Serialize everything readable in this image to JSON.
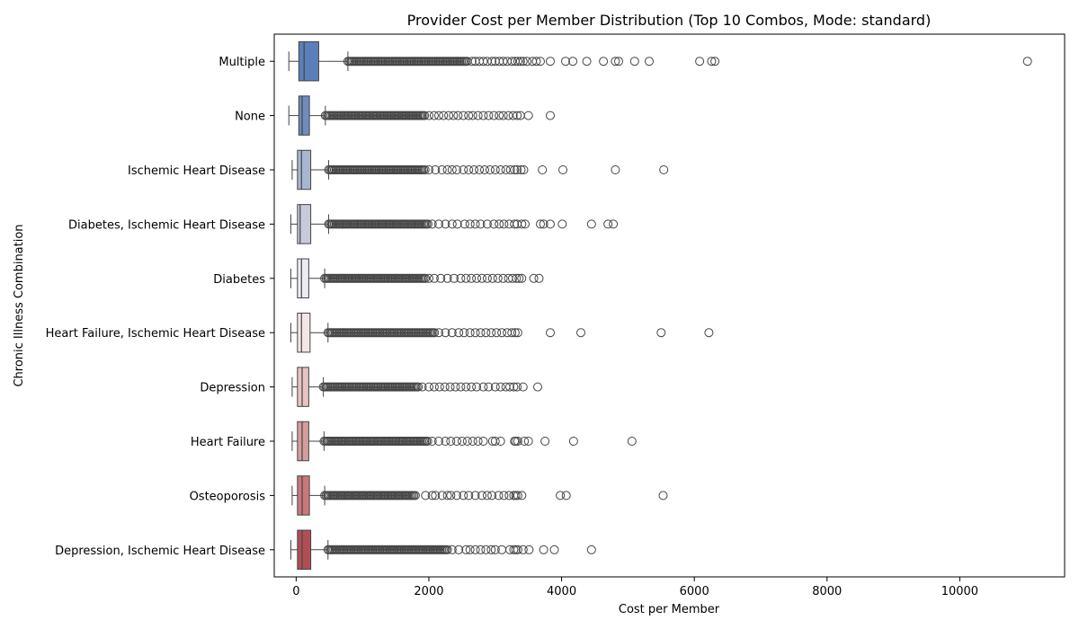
{
  "chart_data": {
    "type": "boxplot",
    "orientation": "horizontal",
    "title": "Provider Cost per Member Distribution (Top 10 Combos, Mode: standard)",
    "xlabel": "Cost per Member",
    "ylabel": "Chronic Illness Combination",
    "xlim": [
      -330,
      11580
    ],
    "xticks": [
      0,
      2000,
      4000,
      6000,
      8000,
      10000
    ],
    "xtick_labels": [
      "0",
      "2000",
      "4000",
      "6000",
      "8000",
      "10000"
    ],
    "grid": false,
    "legend": "none",
    "series": [
      {
        "category": "Multiple",
        "color": "#5b7fb8",
        "whisker_low": -110,
        "q1": 40,
        "median": 120,
        "q3": 340,
        "whisker_high": 780,
        "outlier_band": [
          780,
          2600
        ],
        "outliers": [
          2650,
          2700,
          2760,
          2820,
          2880,
          2950,
          3000,
          3060,
          3120,
          3180,
          3250,
          3300,
          3340,
          3380,
          3420,
          3480,
          3560,
          3620,
          3680,
          3830,
          4060,
          4170,
          4380,
          4630,
          4810,
          4860,
          5100,
          5320,
          6080,
          6260,
          6310,
          11020
        ]
      },
      {
        "category": "None",
        "color": "#6f8cbd",
        "whisker_low": -110,
        "q1": 40,
        "median": 90,
        "q3": 200,
        "whisker_high": 440,
        "outlier_band": [
          440,
          1950
        ],
        "outliers": [
          2000,
          2080,
          2150,
          2220,
          2300,
          2370,
          2440,
          2520,
          2600,
          2660,
          2740,
          2820,
          2900,
          2980,
          3060,
          3120,
          3200,
          3270,
          3330,
          3380,
          3500,
          3830
        ]
      },
      {
        "category": "Ischemic Heart Disease",
        "color": "#a9b6d1",
        "whisker_low": -60,
        "q1": 20,
        "median": 80,
        "q3": 220,
        "whisker_high": 490,
        "outlier_band": [
          490,
          1950
        ],
        "outliers": [
          2000,
          2100,
          2200,
          2280,
          2350,
          2420,
          2520,
          2600,
          2680,
          2760,
          2840,
          2920,
          3000,
          3080,
          3160,
          3230,
          3290,
          3330,
          3390,
          3430,
          3710,
          4020,
          4810,
          5540
        ]
      },
      {
        "category": "Diabetes, Ischemic Heart Disease",
        "color": "#c6cad9",
        "whisker_low": -80,
        "q1": 20,
        "median": 60,
        "q3": 220,
        "whisker_high": 490,
        "outlier_band": [
          490,
          2000
        ],
        "outliers": [
          2050,
          2150,
          2250,
          2350,
          2430,
          2540,
          2620,
          2700,
          2780,
          2880,
          2980,
          3060,
          3130,
          3210,
          3290,
          3330,
          3400,
          3450,
          3680,
          3730,
          3830,
          4010,
          4450,
          4700,
          4780
        ]
      },
      {
        "category": "Diabetes",
        "color": "#ecedf3",
        "whisker_low": -80,
        "q1": 20,
        "median": 80,
        "q3": 190,
        "whisker_high": 430,
        "outlier_band": [
          430,
          1950
        ],
        "outliers": [
          2000,
          2080,
          2180,
          2280,
          2380,
          2480,
          2560,
          2640,
          2720,
          2800,
          2880,
          2960,
          3040,
          3120,
          3200,
          3260,
          3320,
          3360,
          3400,
          3580,
          3660
        ]
      },
      {
        "category": "Heart Failure, Ischemic Heart Disease",
        "color": "#f4e6e6",
        "whisker_low": -80,
        "q1": 20,
        "median": 80,
        "q3": 210,
        "whisker_high": 480,
        "outlier_band": [
          480,
          2100
        ],
        "outliers": [
          2150,
          2250,
          2350,
          2450,
          2530,
          2620,
          2700,
          2780,
          2860,
          2940,
          3020,
          3100,
          3180,
          3250,
          3300,
          3340,
          3830,
          4290,
          5500,
          6220
        ]
      },
      {
        "category": "Depression",
        "color": "#e7c3c4",
        "whisker_low": -60,
        "q1": 20,
        "median": 90,
        "q3": 190,
        "whisker_high": 410,
        "outlier_band": [
          410,
          1850
        ],
        "outliers": [
          1900,
          2000,
          2080,
          2160,
          2240,
          2320,
          2400,
          2480,
          2560,
          2640,
          2720,
          2820,
          2900,
          3000,
          3080,
          3160,
          3220,
          3280,
          3330,
          3420,
          3640
        ]
      },
      {
        "category": "Heart Failure",
        "color": "#d59c9e",
        "whisker_low": -60,
        "q1": 20,
        "median": 90,
        "q3": 190,
        "whisker_high": 420,
        "outlier_band": [
          420,
          2000
        ],
        "outliers": [
          2050,
          2150,
          2250,
          2330,
          2420,
          2500,
          2580,
          2660,
          2740,
          2820,
          2960,
          3000,
          3080,
          3290,
          3310,
          3340,
          3440,
          3500,
          3750,
          4180,
          5060
        ]
      },
      {
        "category": "Osteoporosis",
        "color": "#c9777b",
        "whisker_low": -60,
        "q1": 20,
        "median": 90,
        "q3": 200,
        "whisker_high": 430,
        "outlier_band": [
          430,
          1800
        ],
        "outliers": [
          1950,
          2050,
          2100,
          2200,
          2280,
          2330,
          2420,
          2520,
          2600,
          2700,
          2800,
          2880,
          2950,
          3050,
          3130,
          3210,
          3280,
          3310,
          3340,
          3400,
          3980,
          4070,
          5530
        ]
      },
      {
        "category": "Depression, Ischemic Heart Disease",
        "color": "#b14e55",
        "whisker_low": -80,
        "q1": 20,
        "median": 90,
        "q3": 220,
        "whisker_high": 480,
        "outlier_band": [
          480,
          2300
        ],
        "outliers": [
          2350,
          2450,
          2560,
          2620,
          2700,
          2780,
          2860,
          2940,
          3000,
          3100,
          3220,
          3280,
          3310,
          3340,
          3420,
          3510,
          3730,
          3890,
          4450
        ]
      }
    ]
  }
}
